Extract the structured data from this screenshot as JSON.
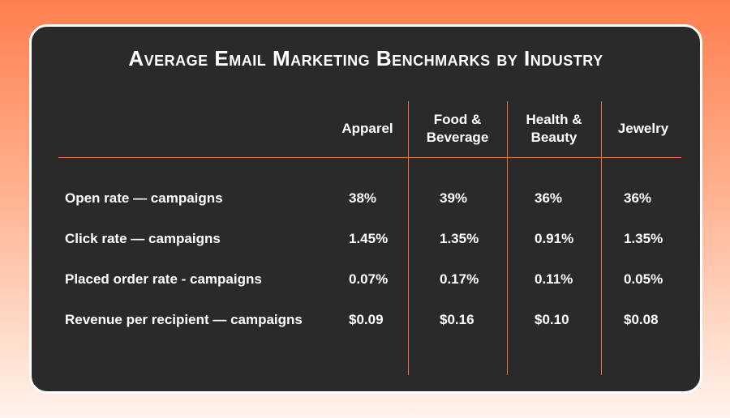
{
  "chart_data": {
    "type": "table",
    "title": "Average Email Marketing Benchmarks by Industry",
    "columns": [
      {
        "line1": "Apparel",
        "line2": ""
      },
      {
        "line1": "Food &",
        "line2": "Beverage"
      },
      {
        "line1": "Health &",
        "line2": "Beauty"
      },
      {
        "line1": "Jewelry",
        "line2": ""
      }
    ],
    "rows": [
      {
        "label": "Open rate — campaigns",
        "values": [
          "38%",
          "39%",
          "36%",
          "36%"
        ]
      },
      {
        "label": "Click rate — campaigns",
        "values": [
          "1.45%",
          "1.35%",
          "0.91%",
          "1.35%"
        ]
      },
      {
        "label": "Placed order rate - campaigns",
        "values": [
          "0.07%",
          "0.17%",
          "0.11%",
          "0.05%"
        ]
      },
      {
        "label": "Revenue per recipient — campaigns",
        "values": [
          "$0.09",
          "$0.16",
          "$0.10",
          "$0.08"
        ]
      }
    ],
    "colors": {
      "background": "#2a2a2a",
      "accent": "#e8743f",
      "text": "#ffffff"
    }
  }
}
